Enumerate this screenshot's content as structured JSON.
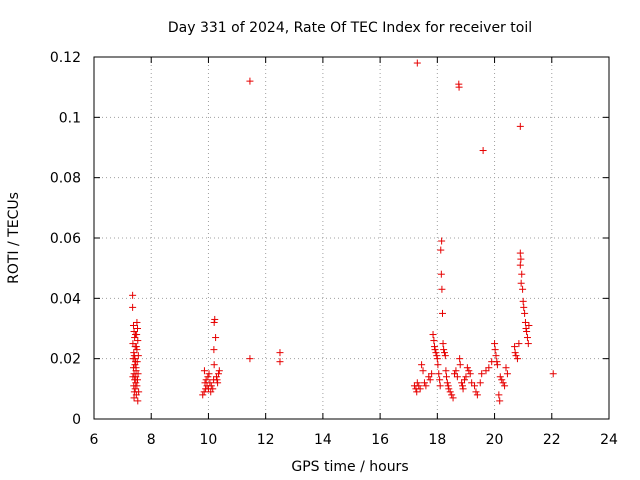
{
  "chart_data": {
    "type": "scatter",
    "title": "Day 331 of 2024, Rate Of TEC Index for receiver toil",
    "xlabel": "GPS time / hours",
    "ylabel": "ROTI / TECUs",
    "xlim": [
      6,
      24
    ],
    "ylim": [
      0,
      0.12
    ],
    "xticks": [
      6,
      8,
      10,
      12,
      14,
      16,
      18,
      20,
      22,
      24
    ],
    "yticks": [
      0,
      0.02,
      0.04,
      0.06,
      0.08,
      0.1,
      0.12
    ],
    "xtick_labels": [
      "6",
      "8",
      "10",
      "12",
      "14",
      "16",
      "18",
      "20",
      "22",
      "24"
    ],
    "ytick_labels": [
      "0",
      "0.02",
      "0.04",
      "0.06",
      "0.08",
      "0.1",
      "0.12"
    ],
    "grid": true,
    "marker": "+",
    "color": "#e60000",
    "series": [
      {
        "name": "ROTI",
        "points": [
          [
            7.35,
            0.041
          ],
          [
            7.35,
            0.037
          ],
          [
            7.38,
            0.031
          ],
          [
            7.4,
            0.029
          ],
          [
            7.42,
            0.027
          ],
          [
            7.36,
            0.025
          ],
          [
            7.44,
            0.024
          ],
          [
            7.39,
            0.022
          ],
          [
            7.41,
            0.021
          ],
          [
            7.37,
            0.02
          ],
          [
            7.45,
            0.019
          ],
          [
            7.43,
            0.018
          ],
          [
            7.38,
            0.017
          ],
          [
            7.47,
            0.016
          ],
          [
            7.4,
            0.015
          ],
          [
            7.36,
            0.014
          ],
          [
            7.42,
            0.013
          ],
          [
            7.46,
            0.012
          ],
          [
            7.39,
            0.011
          ],
          [
            7.44,
            0.01
          ],
          [
            7.41,
            0.009
          ],
          [
            7.48,
            0.008
          ],
          [
            7.4,
            0.007
          ],
          [
            7.5,
            0.032
          ],
          [
            7.52,
            0.03
          ],
          [
            7.49,
            0.028
          ],
          [
            7.53,
            0.026
          ],
          [
            7.5,
            0.023
          ],
          [
            7.55,
            0.021
          ],
          [
            7.51,
            0.019
          ],
          [
            7.47,
            0.017
          ],
          [
            7.54,
            0.015
          ],
          [
            7.52,
            0.013
          ],
          [
            7.5,
            0.011
          ],
          [
            7.56,
            0.009
          ],
          [
            7.53,
            0.006
          ],
          [
            7.45,
            0.028
          ],
          [
            7.48,
            0.024
          ],
          [
            7.43,
            0.02
          ],
          [
            7.46,
            0.014
          ],
          [
            9.8,
            0.008
          ],
          [
            9.85,
            0.009
          ],
          [
            9.9,
            0.01
          ],
          [
            9.95,
            0.011
          ],
          [
            9.88,
            0.012
          ],
          [
            9.92,
            0.013
          ],
          [
            9.98,
            0.014
          ],
          [
            10.02,
            0.015
          ],
          [
            9.86,
            0.016
          ],
          [
            10.05,
            0.012
          ],
          [
            10.1,
            0.011
          ],
          [
            10.0,
            0.01
          ],
          [
            10.08,
            0.009
          ],
          [
            10.15,
            0.01
          ],
          [
            10.18,
            0.013
          ],
          [
            10.22,
            0.033
          ],
          [
            10.2,
            0.032
          ],
          [
            10.25,
            0.027
          ],
          [
            10.19,
            0.023
          ],
          [
            10.2,
            0.018
          ],
          [
            10.3,
            0.013
          ],
          [
            10.35,
            0.015
          ],
          [
            10.28,
            0.014
          ],
          [
            10.38,
            0.016
          ],
          [
            10.32,
            0.012
          ],
          [
            11.45,
            0.112
          ],
          [
            11.45,
            0.02
          ],
          [
            12.5,
            0.022
          ],
          [
            12.5,
            0.019
          ],
          [
            17.3,
            0.118
          ],
          [
            17.2,
            0.011
          ],
          [
            17.25,
            0.01
          ],
          [
            17.3,
            0.012
          ],
          [
            17.35,
            0.011
          ],
          [
            17.28,
            0.009
          ],
          [
            17.4,
            0.01
          ],
          [
            17.45,
            0.018
          ],
          [
            17.5,
            0.016
          ],
          [
            17.55,
            0.012
          ],
          [
            17.6,
            0.011
          ],
          [
            17.7,
            0.014
          ],
          [
            17.75,
            0.013
          ],
          [
            17.8,
            0.015
          ],
          [
            17.85,
            0.028
          ],
          [
            17.88,
            0.026
          ],
          [
            17.9,
            0.024
          ],
          [
            17.92,
            0.023
          ],
          [
            17.95,
            0.022
          ],
          [
            17.98,
            0.021
          ],
          [
            18.0,
            0.02
          ],
          [
            18.02,
            0.018
          ],
          [
            18.05,
            0.015
          ],
          [
            18.08,
            0.013
          ],
          [
            18.1,
            0.011
          ],
          [
            18.15,
            0.059
          ],
          [
            18.12,
            0.056
          ],
          [
            18.14,
            0.048
          ],
          [
            18.16,
            0.043
          ],
          [
            18.18,
            0.035
          ],
          [
            18.2,
            0.025
          ],
          [
            18.22,
            0.023
          ],
          [
            18.25,
            0.022
          ],
          [
            18.28,
            0.021
          ],
          [
            18.3,
            0.016
          ],
          [
            18.32,
            0.014
          ],
          [
            18.35,
            0.012
          ],
          [
            18.38,
            0.011
          ],
          [
            18.4,
            0.01
          ],
          [
            18.45,
            0.009
          ],
          [
            18.5,
            0.008
          ],
          [
            18.55,
            0.007
          ],
          [
            18.6,
            0.015
          ],
          [
            18.65,
            0.016
          ],
          [
            18.7,
            0.014
          ],
          [
            18.75,
            0.111
          ],
          [
            18.76,
            0.11
          ],
          [
            18.78,
            0.02
          ],
          [
            18.8,
            0.018
          ],
          [
            18.85,
            0.012
          ],
          [
            18.88,
            0.011
          ],
          [
            18.9,
            0.01
          ],
          [
            18.95,
            0.013
          ],
          [
            19.0,
            0.014
          ],
          [
            19.05,
            0.017
          ],
          [
            19.1,
            0.016
          ],
          [
            19.15,
            0.015
          ],
          [
            19.2,
            0.012
          ],
          [
            19.3,
            0.011
          ],
          [
            19.35,
            0.009
          ],
          [
            19.4,
            0.008
          ],
          [
            19.5,
            0.012
          ],
          [
            19.55,
            0.015
          ],
          [
            19.6,
            0.089
          ],
          [
            19.7,
            0.016
          ],
          [
            19.8,
            0.017
          ],
          [
            19.9,
            0.019
          ],
          [
            20.0,
            0.025
          ],
          [
            20.02,
            0.023
          ],
          [
            20.05,
            0.021
          ],
          [
            20.08,
            0.019
          ],
          [
            20.1,
            0.018
          ],
          [
            20.15,
            0.008
          ],
          [
            20.18,
            0.006
          ],
          [
            20.2,
            0.014
          ],
          [
            20.25,
            0.013
          ],
          [
            20.3,
            0.012
          ],
          [
            20.35,
            0.011
          ],
          [
            20.4,
            0.017
          ],
          [
            20.45,
            0.015
          ],
          [
            20.7,
            0.024
          ],
          [
            20.72,
            0.022
          ],
          [
            20.75,
            0.021
          ],
          [
            20.8,
            0.02
          ],
          [
            20.85,
            0.025
          ],
          [
            20.9,
            0.097
          ],
          [
            20.9,
            0.055
          ],
          [
            20.92,
            0.053
          ],
          [
            20.9,
            0.051
          ],
          [
            20.95,
            0.048
          ],
          [
            20.93,
            0.045
          ],
          [
            20.98,
            0.043
          ],
          [
            21.0,
            0.039
          ],
          [
            21.02,
            0.037
          ],
          [
            21.05,
            0.035
          ],
          [
            21.08,
            0.032
          ],
          [
            21.1,
            0.03
          ],
          [
            21.12,
            0.029
          ],
          [
            21.15,
            0.027
          ],
          [
            21.18,
            0.025
          ],
          [
            21.2,
            0.031
          ],
          [
            22.05,
            0.015
          ]
        ]
      }
    ]
  }
}
